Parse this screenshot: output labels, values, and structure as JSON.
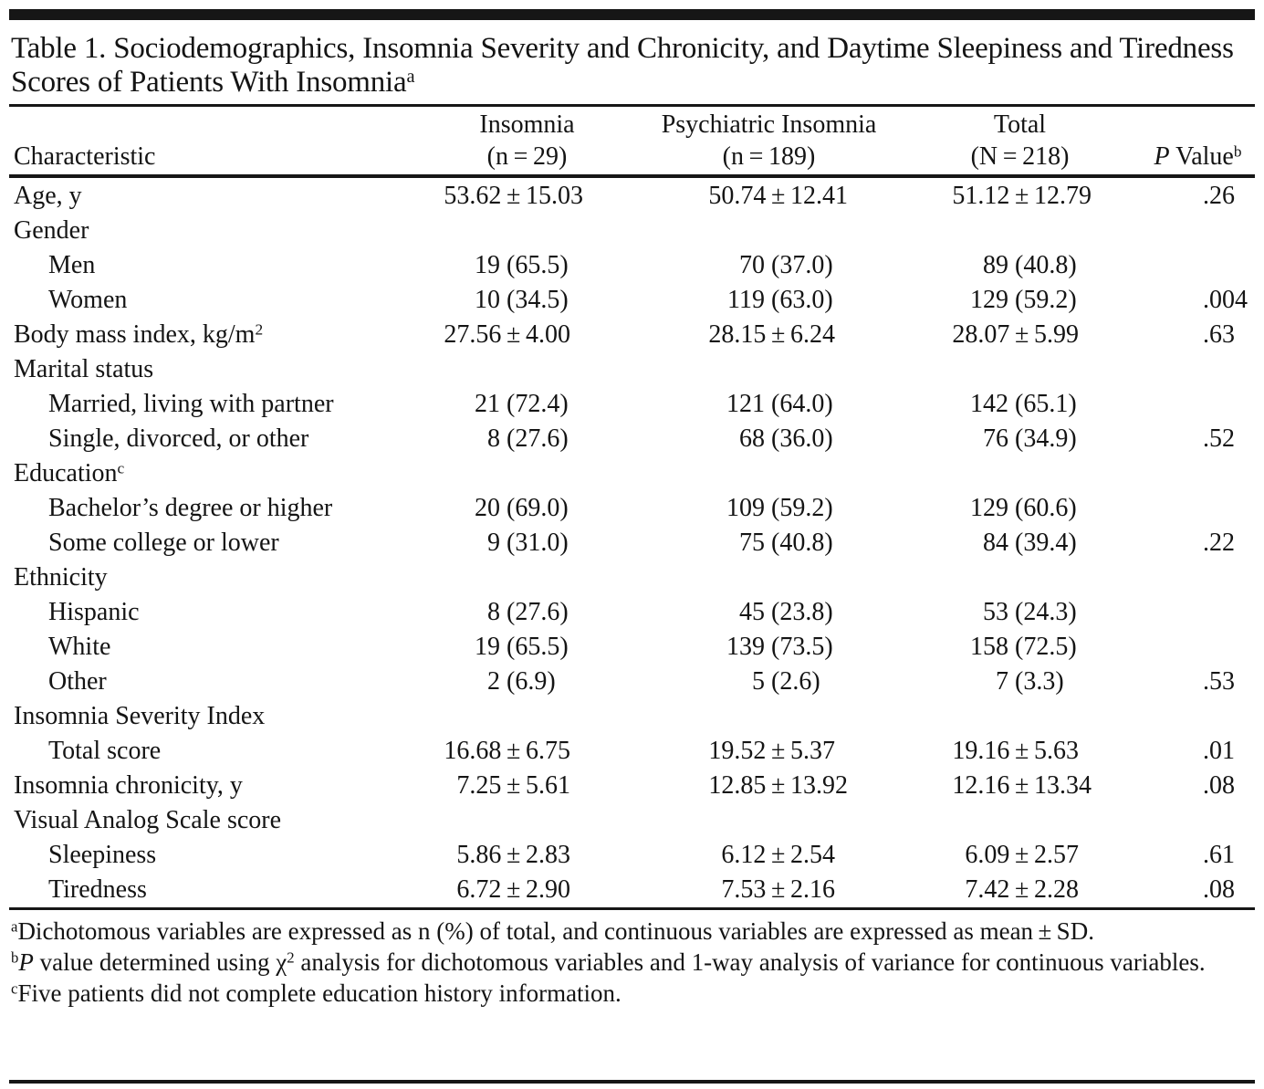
{
  "table": {
    "title": "Table 1. Sociodemographics, Insomnia Severity and Chronicity, and Daytime Sleepiness and Tiredness Scores of Patients With Insomnia^{a}",
    "columns": [
      {
        "label": "Characteristic"
      },
      {
        "line1": "Insomnia",
        "line2": "(n = 29)"
      },
      {
        "line1": "Psychiatric Insomnia",
        "line2": "(n = 189)"
      },
      {
        "line1": "Total",
        "line2": "(N = 218)"
      },
      {
        "line1": "",
        "line2": "*P* Value^{b}"
      }
    ],
    "rows": [
      {
        "label": "Age, y",
        "indent": false,
        "values": [
          "53.62 ± 15.03",
          "50.74 ± 12.41",
          "51.12 ± 12.79",
          ".26"
        ]
      },
      {
        "label": "Gender",
        "indent": false,
        "values": [
          "",
          "",
          "",
          ""
        ]
      },
      {
        "label": "Men",
        "indent": true,
        "values": [
          "19 (65.5)",
          "70 (37.0)",
          "89 (40.8)",
          ""
        ]
      },
      {
        "label": "Women",
        "indent": true,
        "values": [
          "10 (34.5)",
          "119 (63.0)",
          "129 (59.2)",
          ".004"
        ]
      },
      {
        "label": "Body mass index, kg/m^{2}",
        "indent": false,
        "values": [
          "27.56 ± 4.00",
          "28.15 ± 6.24",
          "28.07 ± 5.99",
          ".63"
        ]
      },
      {
        "label": "Marital status",
        "indent": false,
        "values": [
          "",
          "",
          "",
          ""
        ]
      },
      {
        "label": "Married, living with partner",
        "indent": true,
        "values": [
          "21 (72.4)",
          "121 (64.0)",
          "142 (65.1)",
          ""
        ]
      },
      {
        "label": "Single, divorced, or other",
        "indent": true,
        "values": [
          "8 (27.6)",
          "68 (36.0)",
          "76 (34.9)",
          ".52"
        ]
      },
      {
        "label": "Education^{c}",
        "indent": false,
        "values": [
          "",
          "",
          "",
          ""
        ]
      },
      {
        "label": "Bachelor’s degree or higher",
        "indent": true,
        "values": [
          "20 (69.0)",
          "109 (59.2)",
          "129 (60.6)",
          ""
        ]
      },
      {
        "label": "Some college or lower",
        "indent": true,
        "values": [
          "9 (31.0)",
          "75 (40.8)",
          "84 (39.4)",
          ".22"
        ]
      },
      {
        "label": "Ethnicity",
        "indent": false,
        "values": [
          "",
          "",
          "",
          ""
        ]
      },
      {
        "label": "Hispanic",
        "indent": true,
        "values": [
          "8 (27.6)",
          "45 (23.8)",
          "53 (24.3)",
          ""
        ]
      },
      {
        "label": "White",
        "indent": true,
        "values": [
          "19 (65.5)",
          "139 (73.5)",
          "158 (72.5)",
          ""
        ]
      },
      {
        "label": "Other",
        "indent": true,
        "values": [
          "2 (6.9)",
          "5 (2.6)",
          "7 (3.3)",
          ".53"
        ]
      },
      {
        "label": "Insomnia Severity Index",
        "indent": false,
        "values": [
          "",
          "",
          "",
          ""
        ]
      },
      {
        "label": "Total score",
        "indent": true,
        "values": [
          "16.68 ± 6.75",
          "19.52 ± 5.37",
          "19.16 ± 5.63",
          ".01"
        ]
      },
      {
        "label": "Insomnia chronicity, y",
        "indent": false,
        "values": [
          "7.25 ± 5.61",
          "12.85 ± 13.92",
          "12.16 ± 13.34",
          ".08"
        ]
      },
      {
        "label": "Visual Analog Scale score",
        "indent": false,
        "values": [
          "",
          "",
          "",
          ""
        ]
      },
      {
        "label": "Sleepiness",
        "indent": true,
        "values": [
          "5.86 ± 2.83",
          "6.12 ± 2.54",
          "6.09 ± 2.57",
          ".61"
        ]
      },
      {
        "label": "Tiredness",
        "indent": true,
        "values": [
          "6.72 ± 2.90",
          "7.53 ± 2.16",
          "7.42 ± 2.28",
          ".08"
        ]
      }
    ],
    "footnotes": [
      "^{a}Dichotomous variables are expressed as n (%) of total, and continuous variables are expressed as mean ± SD.",
      "^{b}*P* value determined using χ^{2} analysis for dichotomous variables and 1-way analysis of variance for continuous variables.",
      "^{c}Five patients did not complete education history information."
    ],
    "colors": {
      "rule": "#161616",
      "text": "#141414",
      "background": "#ffffff"
    }
  }
}
